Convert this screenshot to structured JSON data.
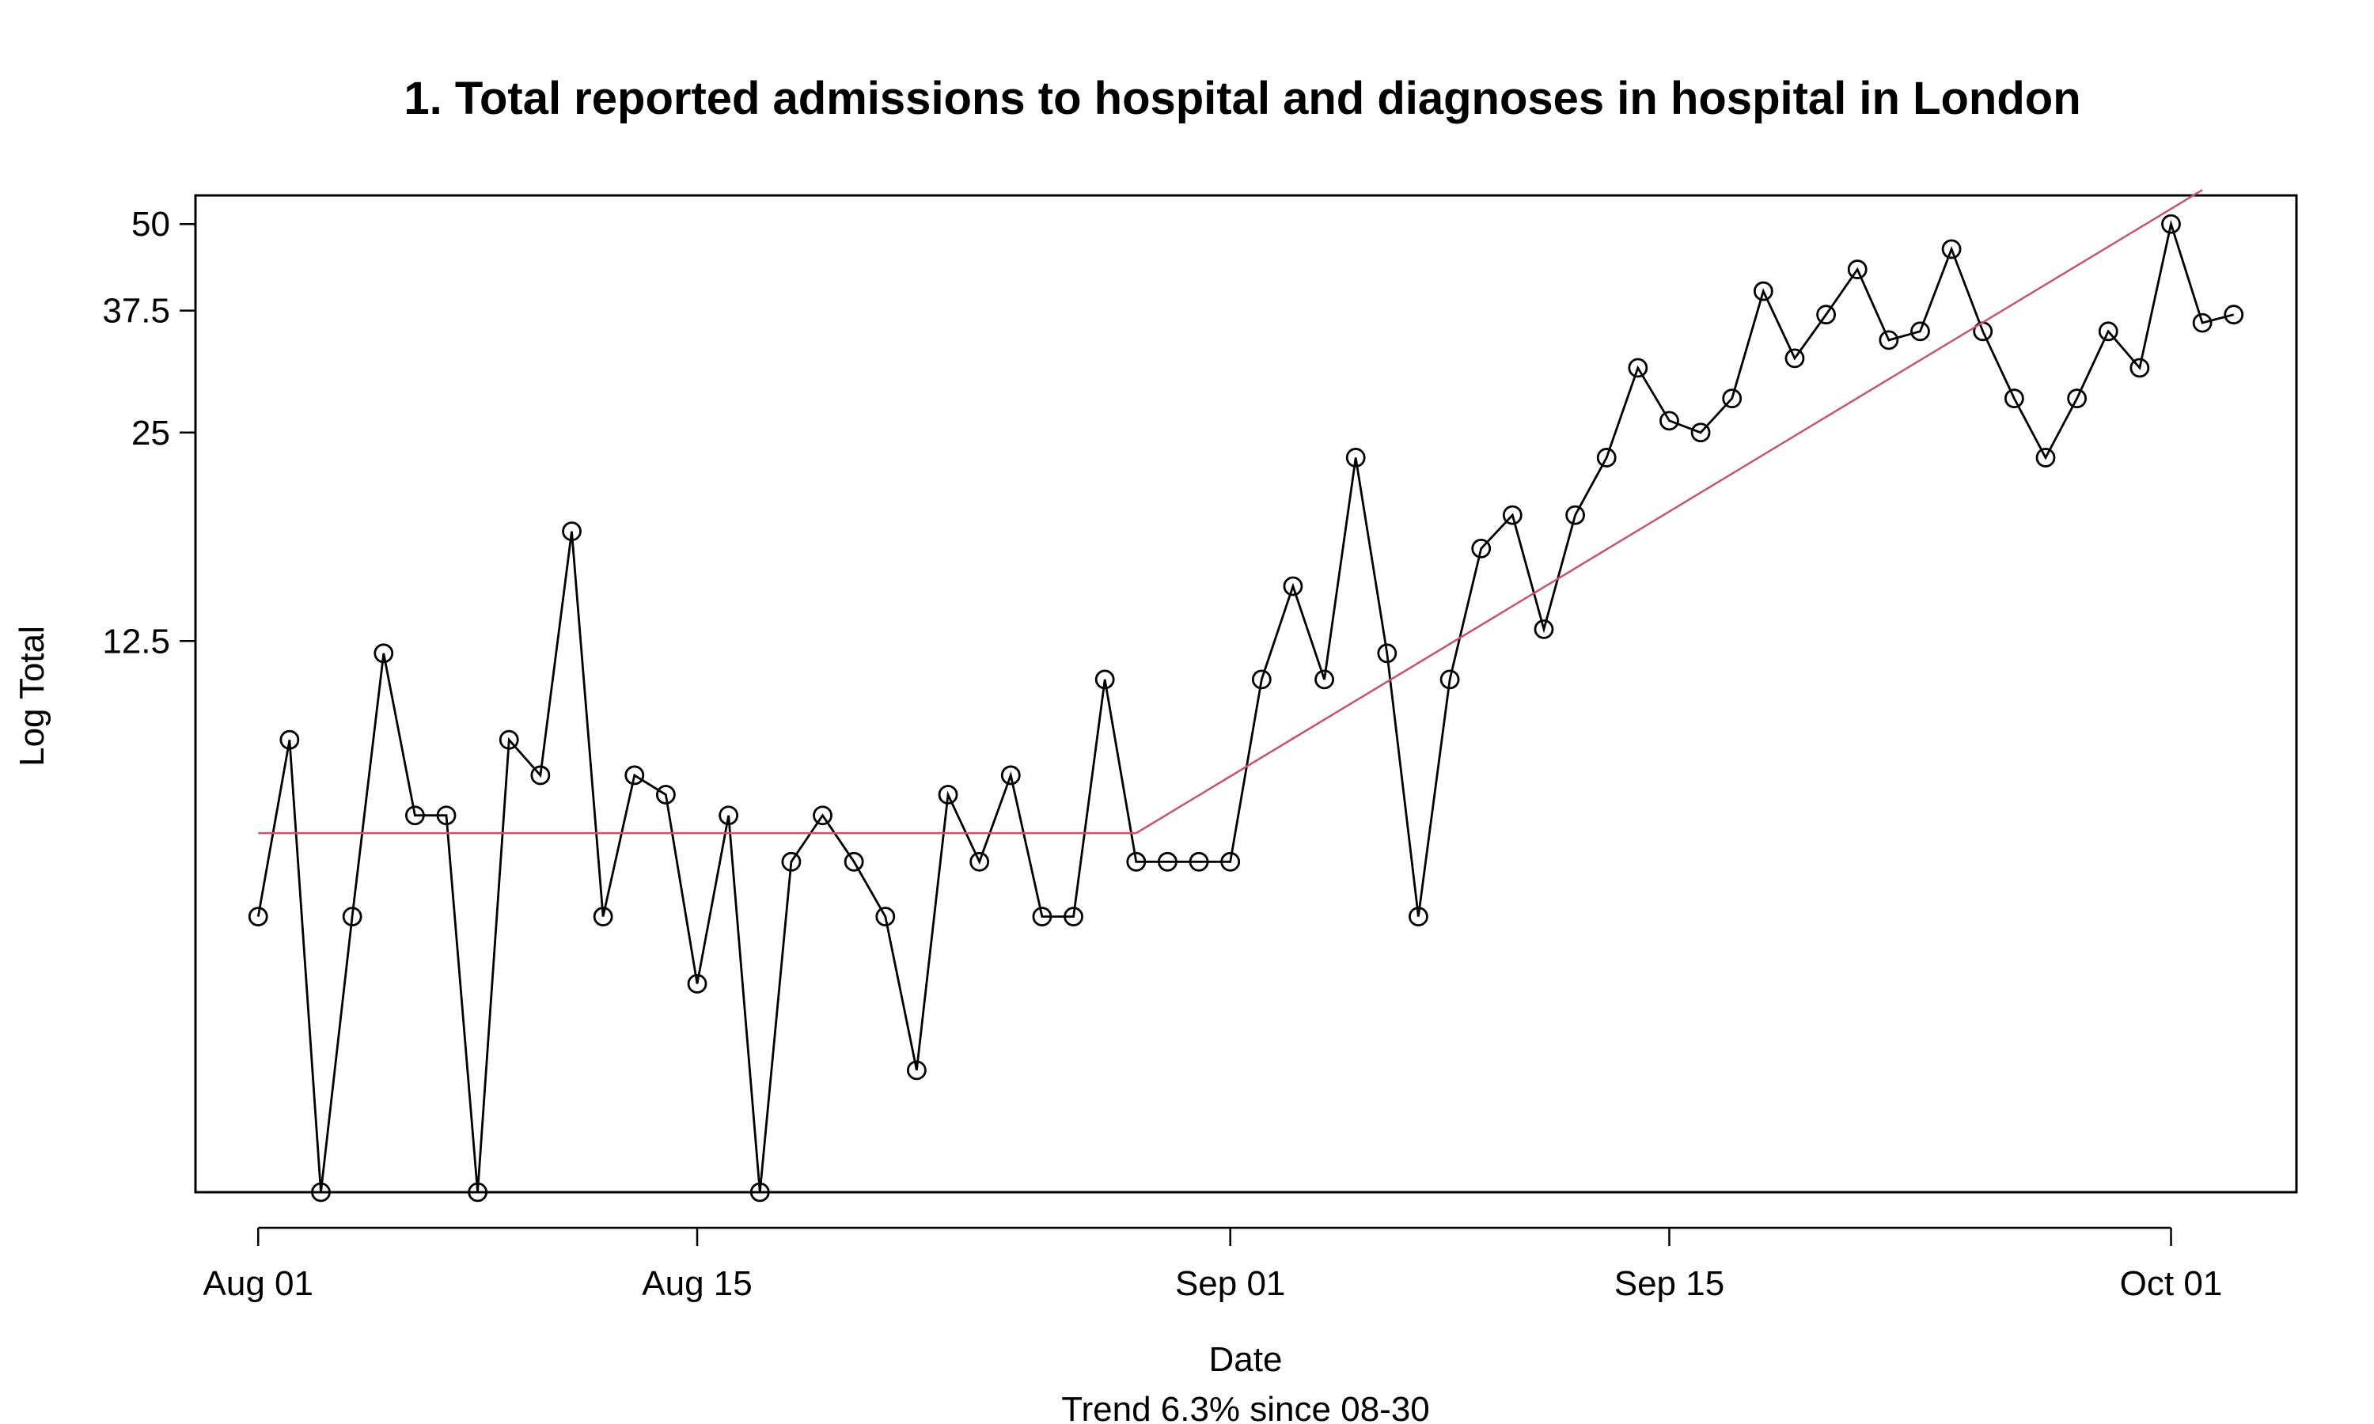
{
  "chart_data": {
    "type": "line",
    "title": "1. Total reported admissions to hospital and diagnoses in hospital in London",
    "xlabel": "Date",
    "subtitle": "Trend 6.3% since 08-30",
    "ylabel": "Log Total",
    "y_scale": "log",
    "x_ticks": [
      {
        "date": "2020-08-01",
        "label": "Aug 01"
      },
      {
        "date": "2020-08-15",
        "label": "Aug 15"
      },
      {
        "date": "2020-09-01",
        "label": "Sep 01"
      },
      {
        "date": "2020-09-15",
        "label": "Sep 15"
      },
      {
        "date": "2020-10-01",
        "label": "Oct 01"
      }
    ],
    "y_ticks": [
      {
        "value": 12.5,
        "label": "12.5"
      },
      {
        "value": 25,
        "label": "25"
      },
      {
        "value": 37.5,
        "label": "37.5"
      },
      {
        "value": 50,
        "label": "50"
      }
    ],
    "xlim": [
      "2020-07-30",
      "2020-10-05"
    ],
    "ylim": [
      2.0,
      55
    ],
    "series": [
      {
        "color": "#000000",
        "marker": "open-circle",
        "x": [
          "2020-08-01",
          "2020-08-02",
          "2020-08-03",
          "2020-08-04",
          "2020-08-05",
          "2020-08-06",
          "2020-08-07",
          "2020-08-08",
          "2020-08-09",
          "2020-08-10",
          "2020-08-11",
          "2020-08-12",
          "2020-08-13",
          "2020-08-14",
          "2020-08-15",
          "2020-08-16",
          "2020-08-17",
          "2020-08-18",
          "2020-08-19",
          "2020-08-20",
          "2020-08-21",
          "2020-08-22",
          "2020-08-23",
          "2020-08-24",
          "2020-08-25",
          "2020-08-26",
          "2020-08-27",
          "2020-08-28",
          "2020-08-29",
          "2020-08-30",
          "2020-08-31",
          "2020-09-01",
          "2020-09-02",
          "2020-09-03",
          "2020-09-04",
          "2020-09-05",
          "2020-09-06",
          "2020-09-07",
          "2020-09-08",
          "2020-09-09",
          "2020-09-10",
          "2020-09-11",
          "2020-09-12",
          "2020-09-13",
          "2020-09-14",
          "2020-09-15",
          "2020-09-16",
          "2020-09-17",
          "2020-09-18",
          "2020-09-19",
          "2020-09-20",
          "2020-09-21",
          "2020-09-22",
          "2020-09-23",
          "2020-09-24",
          "2020-09-25",
          "2020-09-26",
          "2020-09-27",
          "2020-09-28",
          "2020-09-29",
          "2020-09-30",
          "2020-10-01",
          "2020-10-02",
          "2020-10-03"
        ],
        "values": [
          5,
          9,
          2,
          5,
          12,
          7,
          7,
          2,
          9,
          8,
          18,
          5,
          8,
          7.5,
          4,
          7,
          2,
          6,
          7,
          6,
          5,
          3,
          7.5,
          6,
          8,
          5,
          5,
          11,
          6,
          6,
          6,
          6,
          11,
          15,
          11,
          23,
          12,
          5,
          11,
          17,
          19,
          13,
          19,
          23,
          31,
          26,
          25,
          28,
          40,
          32,
          37,
          43,
          34,
          35,
          46,
          35,
          28,
          23,
          28,
          35,
          31,
          50,
          36,
          37
        ]
      },
      {
        "color": "#c9546b",
        "marker": "none",
        "x": [
          "2020-08-01",
          "2020-08-29",
          "2020-10-02"
        ],
        "values": [
          6.6,
          6.6,
          56
        ]
      }
    ]
  }
}
